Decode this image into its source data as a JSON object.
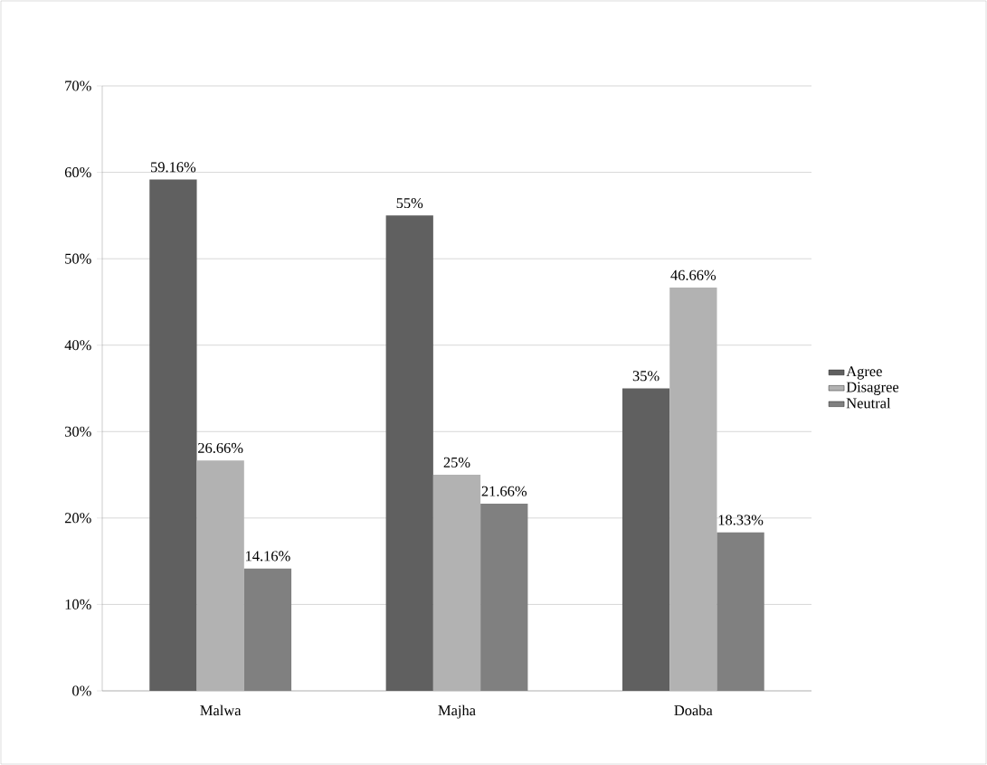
{
  "chart_data": {
    "type": "bar",
    "categories": [
      "Malwa",
      "Majha",
      "Doaba"
    ],
    "series": [
      {
        "name": "Agree",
        "color": "#606060",
        "values": [
          59.16,
          55,
          35
        ],
        "value_labels": [
          "59.16%",
          "55%",
          "35%"
        ]
      },
      {
        "name": "Disagree",
        "color": "#b2b2b2",
        "values": [
          26.66,
          25,
          46.66
        ],
        "value_labels": [
          "26.66%",
          "25%",
          "46.66%"
        ]
      },
      {
        "name": "Neutral",
        "color": "#808080",
        "values": [
          14.16,
          21.66,
          18.33
        ],
        "value_labels": [
          "14.16%",
          "21.66%",
          "18.33%"
        ]
      }
    ],
    "ylim": [
      0,
      70
    ],
    "yticks": [
      {
        "value": 0,
        "label": "0%"
      },
      {
        "value": 10,
        "label": "10%"
      },
      {
        "value": 20,
        "label": "20%"
      },
      {
        "value": 30,
        "label": "30%"
      },
      {
        "value": 40,
        "label": "40%"
      },
      {
        "value": 50,
        "label": "50%"
      },
      {
        "value": 60,
        "label": "60%"
      },
      {
        "value": 70,
        "label": "70%"
      }
    ],
    "grid": "y",
    "legend": "right"
  }
}
